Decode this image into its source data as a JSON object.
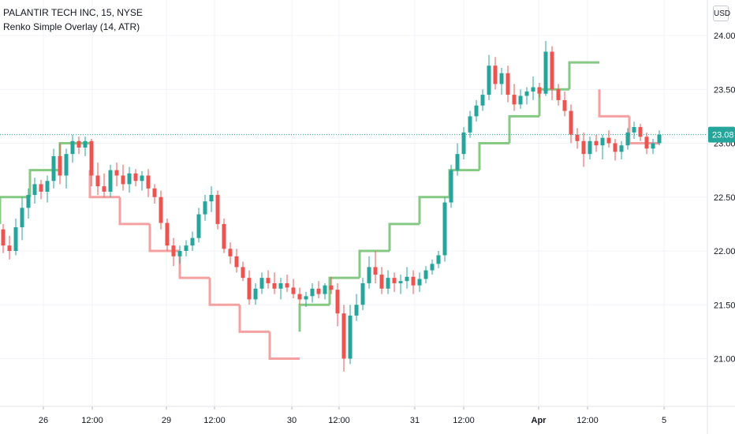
{
  "legend": {
    "symbol": "PALANTIR TECH INC, 15, NYSE",
    "indicator": "Renko Simple Overlay (14, ATR)"
  },
  "currency": "USD",
  "last_price_label": "23.08",
  "colors": {
    "up": "#26a69a",
    "down": "#ef5350",
    "renko_up": "#80c67d",
    "renko_down": "#f59c9c",
    "grid": "#f0f3fa",
    "axis_text": "#131722",
    "price_line": "#26a69a"
  },
  "chart_data": {
    "type": "candlestick",
    "title": "PALANTIR TECH INC, 15, NYSE",
    "ylim": [
      20.75,
      24.1
    ],
    "grid": true,
    "y_ticks": [
      "24.00",
      "23.50",
      "23.00",
      "22.50",
      "22.00",
      "21.50",
      "21.00"
    ],
    "x_ticks": [
      "26",
      "12:00",
      "29",
      "12:00",
      "30",
      "12:00",
      "31",
      "12:00",
      "Apr",
      "12:00",
      "5"
    ],
    "last_price": 23.08,
    "ohlc": [
      [
        22.2,
        22.25,
        21.98,
        22.05
      ],
      [
        22.05,
        22.14,
        21.92,
        22.0
      ],
      [
        22.0,
        22.3,
        21.96,
        22.22
      ],
      [
        22.22,
        22.5,
        22.1,
        22.4
      ],
      [
        22.4,
        22.58,
        22.3,
        22.52
      ],
      [
        22.52,
        22.68,
        22.44,
        22.62
      ],
      [
        22.62,
        22.66,
        22.48,
        22.55
      ],
      [
        22.55,
        22.7,
        22.45,
        22.65
      ],
      [
        22.65,
        22.95,
        22.58,
        22.88
      ],
      [
        22.88,
        23.0,
        22.62,
        22.7
      ],
      [
        22.7,
        22.95,
        22.58,
        22.9
      ],
      [
        22.9,
        23.08,
        22.82,
        23.02
      ],
      [
        23.02,
        23.06,
        22.9,
        22.96
      ],
      [
        22.96,
        23.06,
        22.88,
        23.02
      ],
      [
        23.02,
        23.04,
        22.6,
        22.7
      ],
      [
        22.7,
        22.82,
        22.52,
        22.6
      ],
      [
        22.6,
        22.72,
        22.5,
        22.55
      ],
      [
        22.55,
        22.8,
        22.5,
        22.75
      ],
      [
        22.75,
        22.82,
        22.6,
        22.7
      ],
      [
        22.7,
        22.8,
        22.56,
        22.62
      ],
      [
        22.62,
        22.78,
        22.54,
        22.72
      ],
      [
        22.72,
        22.76,
        22.6,
        22.65
      ],
      [
        22.65,
        22.74,
        22.56,
        22.7
      ],
      [
        22.7,
        22.76,
        22.5,
        22.58
      ],
      [
        22.58,
        22.62,
        22.44,
        22.5
      ],
      [
        22.5,
        22.56,
        22.2,
        22.26
      ],
      [
        22.26,
        22.3,
        22.0,
        22.05
      ],
      [
        22.05,
        22.12,
        21.86,
        21.95
      ],
      [
        21.95,
        22.05,
        21.88,
        22.0
      ],
      [
        22.0,
        22.1,
        21.95,
        22.05
      ],
      [
        22.05,
        22.18,
        22.0,
        22.12
      ],
      [
        22.12,
        22.4,
        22.08,
        22.34
      ],
      [
        22.34,
        22.52,
        22.28,
        22.46
      ],
      [
        22.46,
        22.6,
        22.36,
        22.52
      ],
      [
        22.52,
        22.56,
        22.2,
        22.25
      ],
      [
        22.25,
        22.3,
        21.98,
        22.02
      ],
      [
        22.02,
        22.08,
        21.88,
        21.95
      ],
      [
        21.95,
        22.02,
        21.8,
        21.85
      ],
      [
        21.85,
        21.9,
        21.72,
        21.75
      ],
      [
        21.75,
        21.82,
        21.5,
        21.55
      ],
      [
        21.55,
        21.7,
        21.5,
        21.65
      ],
      [
        21.65,
        21.8,
        21.6,
        21.75
      ],
      [
        21.75,
        21.82,
        21.65,
        21.7
      ],
      [
        21.7,
        21.8,
        21.6,
        21.65
      ],
      [
        21.65,
        21.75,
        21.55,
        21.7
      ],
      [
        21.7,
        21.78,
        21.62,
        21.66
      ],
      [
        21.66,
        21.74,
        21.56,
        21.6
      ],
      [
        21.6,
        21.66,
        21.5,
        21.55
      ],
      [
        21.55,
        21.62,
        21.48,
        21.58
      ],
      [
        21.58,
        21.7,
        21.52,
        21.65
      ],
      [
        21.65,
        21.72,
        21.56,
        21.6
      ],
      [
        21.6,
        21.7,
        21.55,
        21.68
      ],
      [
        21.68,
        21.76,
        21.6,
        21.64
      ],
      [
        21.64,
        21.7,
        21.3,
        21.42
      ],
      [
        21.42,
        21.5,
        20.88,
        21.0
      ],
      [
        21.0,
        21.5,
        20.95,
        21.4
      ],
      [
        21.4,
        21.6,
        21.35,
        21.5
      ],
      [
        21.5,
        21.75,
        21.45,
        21.7
      ],
      [
        21.7,
        21.95,
        21.65,
        21.85
      ],
      [
        21.85,
        22.0,
        21.7,
        21.78
      ],
      [
        21.78,
        21.85,
        21.6,
        21.65
      ],
      [
        21.65,
        21.82,
        21.6,
        21.75
      ],
      [
        21.75,
        21.8,
        21.62,
        21.7
      ],
      [
        21.7,
        21.78,
        21.6,
        21.72
      ],
      [
        21.72,
        21.85,
        21.65,
        21.76
      ],
      [
        21.76,
        21.82,
        21.6,
        21.68
      ],
      [
        21.68,
        21.8,
        21.62,
        21.74
      ],
      [
        21.74,
        21.86,
        21.7,
        21.82
      ],
      [
        21.82,
        21.92,
        21.78,
        21.88
      ],
      [
        21.88,
        22.0,
        21.84,
        21.96
      ],
      [
        21.96,
        22.5,
        21.9,
        22.45
      ],
      [
        22.45,
        22.8,
        22.4,
        22.75
      ],
      [
        22.75,
        23.0,
        22.7,
        22.9
      ],
      [
        22.9,
        23.15,
        22.85,
        23.1
      ],
      [
        23.1,
        23.3,
        23.05,
        23.25
      ],
      [
        23.25,
        23.4,
        23.2,
        23.35
      ],
      [
        23.35,
        23.5,
        23.3,
        23.45
      ],
      [
        23.45,
        23.82,
        23.4,
        23.72
      ],
      [
        23.72,
        23.8,
        23.5,
        23.55
      ],
      [
        23.55,
        23.7,
        23.45,
        23.65
      ],
      [
        23.65,
        23.72,
        23.38,
        23.45
      ],
      [
        23.45,
        23.55,
        23.3,
        23.36
      ],
      [
        23.36,
        23.5,
        23.32,
        23.44
      ],
      [
        23.44,
        23.52,
        23.36,
        23.48
      ],
      [
        23.48,
        23.62,
        23.4,
        23.52
      ],
      [
        23.52,
        23.56,
        23.42,
        23.46
      ],
      [
        23.46,
        23.95,
        23.44,
        23.85
      ],
      [
        23.85,
        23.9,
        23.4,
        23.5
      ],
      [
        23.5,
        23.55,
        23.35,
        23.4
      ],
      [
        23.4,
        23.48,
        23.25,
        23.3
      ],
      [
        23.3,
        23.36,
        23.0,
        23.08
      ],
      [
        23.08,
        23.14,
        22.95,
        23.02
      ],
      [
        23.02,
        23.1,
        22.78,
        22.9
      ],
      [
        22.9,
        23.06,
        22.85,
        23.02
      ],
      [
        23.02,
        23.08,
        22.92,
        22.98
      ],
      [
        22.98,
        23.08,
        22.85,
        23.05
      ],
      [
        23.05,
        23.12,
        22.96,
        23.0
      ],
      [
        23.0,
        23.04,
        22.84,
        22.92
      ],
      [
        22.92,
        23.02,
        22.85,
        22.98
      ],
      [
        22.98,
        23.14,
        22.94,
        23.1
      ],
      [
        23.1,
        23.2,
        23.04,
        23.15
      ],
      [
        23.15,
        23.18,
        23.02,
        23.06
      ],
      [
        23.06,
        23.1,
        22.9,
        22.95
      ],
      [
        22.95,
        23.04,
        22.9,
        23.0
      ],
      [
        23.0,
        23.12,
        22.98,
        23.08
      ]
    ],
    "renko": [
      {
        "dir": "up",
        "start": 22.25,
        "end": 22.5
      },
      {
        "dir": "up",
        "start": 22.5,
        "end": 22.75
      },
      {
        "dir": "up",
        "start": 22.75,
        "end": 23.0
      },
      {
        "dir": "down",
        "start": 22.75,
        "end": 22.5
      },
      {
        "dir": "down",
        "start": 22.5,
        "end": 22.25
      },
      {
        "dir": "down",
        "start": 22.25,
        "end": 22.0
      },
      {
        "dir": "down",
        "start": 22.0,
        "end": 21.75
      },
      {
        "dir": "down",
        "start": 21.75,
        "end": 21.5
      },
      {
        "dir": "down",
        "start": 21.5,
        "end": 21.25
      },
      {
        "dir": "down",
        "start": 21.25,
        "end": 21.0
      },
      {
        "dir": "up",
        "start": 21.25,
        "end": 21.5
      },
      {
        "dir": "up",
        "start": 21.5,
        "end": 21.75
      },
      {
        "dir": "up",
        "start": 21.75,
        "end": 22.0
      },
      {
        "dir": "up",
        "start": 22.0,
        "end": 22.25
      },
      {
        "dir": "up",
        "start": 22.25,
        "end": 22.5
      },
      {
        "dir": "up",
        "start": 22.5,
        "end": 22.75
      },
      {
        "dir": "up",
        "start": 22.75,
        "end": 23.0
      },
      {
        "dir": "up",
        "start": 23.0,
        "end": 23.25
      },
      {
        "dir": "up",
        "start": 23.25,
        "end": 23.5
      },
      {
        "dir": "up",
        "start": 23.5,
        "end": 23.75
      },
      {
        "dir": "down",
        "start": 23.5,
        "end": 23.25
      },
      {
        "dir": "down",
        "start": 23.25,
        "end": 23.0
      }
    ]
  }
}
